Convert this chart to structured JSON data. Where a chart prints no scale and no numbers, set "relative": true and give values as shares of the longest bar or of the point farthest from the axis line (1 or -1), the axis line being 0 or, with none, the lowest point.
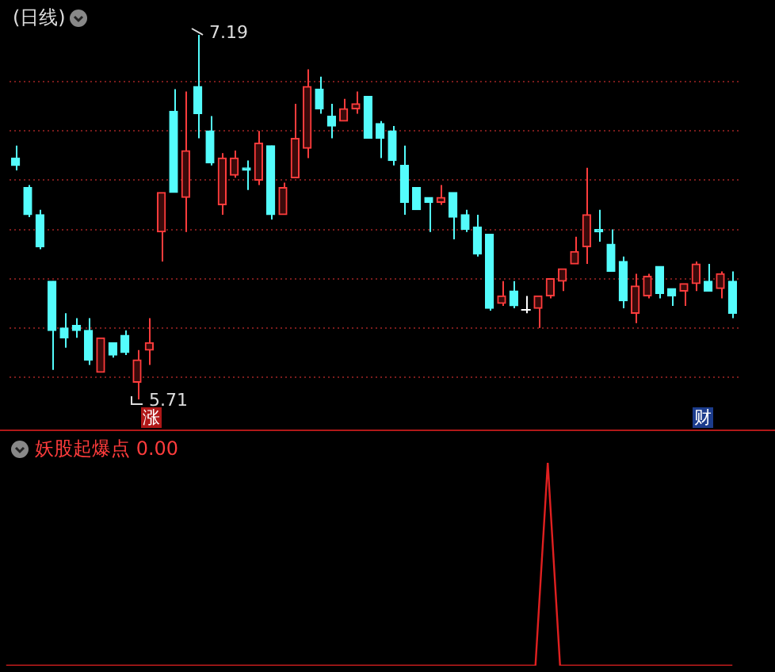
{
  "chart_data": [
    {
      "type": "candlestick",
      "title": "(日线)",
      "categories": [
        null,
        null,
        null,
        null,
        null,
        null,
        null,
        null,
        null,
        null,
        null,
        null,
        null,
        null,
        null,
        null,
        null,
        null,
        null,
        null,
        null,
        null,
        null,
        null,
        null,
        null,
        null,
        null,
        null,
        null,
        null,
        null,
        null,
        null,
        null,
        null,
        null,
        null,
        null,
        null,
        null,
        null,
        null,
        null,
        null,
        null,
        null,
        null,
        null,
        null,
        null,
        null,
        null,
        null,
        null,
        null,
        null,
        null,
        null,
        null
      ],
      "ohlc": [
        [
          6.69,
          6.74,
          6.64,
          6.66
        ],
        [
          6.57,
          6.58,
          6.45,
          6.46
        ],
        [
          6.46,
          6.48,
          6.32,
          6.33
        ],
        [
          6.19,
          6.19,
          5.83,
          5.99
        ],
        [
          6.0,
          6.06,
          5.92,
          5.96
        ],
        [
          6.01,
          6.04,
          5.96,
          5.99
        ],
        [
          5.99,
          6.04,
          5.85,
          5.87
        ],
        [
          5.82,
          5.96,
          5.82,
          5.96
        ],
        [
          5.94,
          5.94,
          5.88,
          5.89
        ],
        [
          5.97,
          5.99,
          5.89,
          5.9
        ],
        [
          5.78,
          5.91,
          5.71,
          5.87
        ],
        [
          5.91,
          6.04,
          5.85,
          5.94
        ],
        [
          6.39,
          6.55,
          6.27,
          6.55
        ],
        [
          6.88,
          6.97,
          6.55,
          6.55
        ],
        [
          6.53,
          6.96,
          6.39,
          6.72
        ],
        [
          6.98,
          7.19,
          6.77,
          6.87
        ],
        [
          6.8,
          6.86,
          6.66,
          6.67
        ],
        [
          6.5,
          6.71,
          6.46,
          6.69
        ],
        [
          6.62,
          6.72,
          6.61,
          6.69
        ],
        [
          6.65,
          6.68,
          6.56,
          6.64
        ],
        [
          6.6,
          6.8,
          6.58,
          6.75
        ],
        [
          6.74,
          6.74,
          6.44,
          6.46
        ],
        [
          6.46,
          6.59,
          6.46,
          6.57
        ],
        [
          6.61,
          6.91,
          6.61,
          6.77
        ],
        [
          6.73,
          7.05,
          6.69,
          6.98
        ],
        [
          6.97,
          7.02,
          6.87,
          6.89
        ],
        [
          6.86,
          6.91,
          6.77,
          6.82
        ],
        [
          6.84,
          6.93,
          6.84,
          6.89
        ],
        [
          6.89,
          6.96,
          6.87,
          6.91
        ],
        [
          6.94,
          6.94,
          6.77,
          6.77
        ],
        [
          6.83,
          6.84,
          6.69,
          6.77
        ],
        [
          6.8,
          6.82,
          6.66,
          6.68
        ],
        [
          6.66,
          6.74,
          6.46,
          6.51
        ],
        [
          6.57,
          6.57,
          6.48,
          6.48
        ],
        [
          6.53,
          6.53,
          6.39,
          6.51
        ],
        [
          6.51,
          6.58,
          6.5,
          6.53
        ],
        [
          6.55,
          6.55,
          6.36,
          6.45
        ],
        [
          6.46,
          6.48,
          6.39,
          6.4
        ],
        [
          6.41,
          6.46,
          6.29,
          6.3
        ],
        [
          6.38,
          6.38,
          6.07,
          6.08
        ],
        [
          6.1,
          6.19,
          6.09,
          6.13
        ],
        [
          6.15,
          6.19,
          6.08,
          6.09
        ],
        [
          6.08,
          6.13,
          6.06,
          6.08
        ],
        [
          6.08,
          6.13,
          6.0,
          6.13
        ],
        [
          6.13,
          6.2,
          6.12,
          6.2
        ],
        [
          6.19,
          6.24,
          6.15,
          6.24
        ],
        [
          6.26,
          6.37,
          6.26,
          6.31
        ],
        [
          6.33,
          6.65,
          6.26,
          6.46
        ],
        [
          6.4,
          6.48,
          6.35,
          6.39
        ],
        [
          6.34,
          6.4,
          6.23,
          6.23
        ],
        [
          6.27,
          6.29,
          6.08,
          6.11
        ],
        [
          6.06,
          6.22,
          6.02,
          6.17
        ],
        [
          6.13,
          6.22,
          6.12,
          6.21
        ],
        [
          6.25,
          6.25,
          6.12,
          6.14
        ],
        [
          6.16,
          6.16,
          6.09,
          6.13
        ],
        [
          6.15,
          6.18,
          6.09,
          6.18
        ],
        [
          6.18,
          6.27,
          6.15,
          6.26
        ],
        [
          6.19,
          6.26,
          6.15,
          6.15
        ],
        [
          6.16,
          6.23,
          6.12,
          6.22
        ],
        [
          6.19,
          6.23,
          6.04,
          6.06
        ]
      ],
      "colors": [
        "#54fcfc",
        "#54fcfc",
        "#54fcfc",
        "#54fcfc",
        "#54fcfc",
        "#54fcfc",
        "#54fcfc",
        "#ff3c3c",
        "#54fcfc",
        "#54fcfc",
        "#ff3c3c",
        "#ff3c3c",
        "#ff3c3c",
        "#54fcfc",
        "#ff3c3c",
        "#54fcfc",
        "#54fcfc",
        "#ff3c3c",
        "#ff3c3c",
        "#54fcfc",
        "#ff3c3c",
        "#54fcfc",
        "#ff3c3c",
        "#ff3c3c",
        "#ff3c3c",
        "#54fcfc",
        "#54fcfc",
        "#ff3c3c",
        "#ff3c3c",
        "#54fcfc",
        "#54fcfc",
        "#54fcfc",
        "#54fcfc",
        "#54fcfc",
        "#54fcfc",
        "#ff3c3c",
        "#54fcfc",
        "#54fcfc",
        "#54fcfc",
        "#54fcfc",
        "#ff3c3c",
        "#54fcfc",
        "#ffffff",
        "#ff3c3c",
        "#ff3c3c",
        "#ff3c3c",
        "#ff3c3c",
        "#ff3c3c",
        "#54fcfc",
        "#54fcfc",
        "#54fcfc",
        "#ff3c3c",
        "#ff3c3c",
        "#54fcfc",
        "#54fcfc",
        "#ff3c3c",
        "#ff3c3c",
        "#54fcfc",
        "#ff3c3c",
        "#54fcfc"
      ],
      "yticks": [
        {
          "value": 5.8,
          "label": null
        },
        {
          "value": 6.0,
          "label": null
        },
        {
          "value": 6.2,
          "label": null
        },
        {
          "value": 6.4,
          "label": null
        },
        {
          "value": 6.6,
          "label": null
        },
        {
          "value": 6.8,
          "label": null
        },
        {
          "value": 7.0,
          "label": null
        }
      ],
      "grid": "y",
      "annotations": [
        "7.19",
        "5.71",
        "涨",
        "财"
      ]
    },
    {
      "type": "line",
      "title": "妖股起爆点 0.00",
      "categories": [
        null,
        null,
        null,
        null,
        null,
        null,
        null,
        null,
        null,
        null,
        null,
        null,
        null,
        null,
        null,
        null,
        null,
        null,
        null,
        null,
        null,
        null,
        null,
        null,
        null,
        null,
        null,
        null,
        null,
        null,
        null,
        null,
        null,
        null,
        null,
        null,
        null,
        null,
        null,
        null,
        null,
        null,
        null,
        null,
        null,
        null,
        null,
        null,
        null,
        null,
        null,
        null,
        null,
        null,
        null,
        null,
        null,
        null,
        null,
        null
      ],
      "relative": true,
      "series": [
        {
          "color": "#e02020",
          "values": [
            0,
            0,
            0,
            0,
            0,
            0,
            0,
            0,
            0,
            0,
            0,
            0,
            0,
            0,
            0,
            0,
            0,
            0,
            0,
            0,
            0,
            0,
            0,
            0,
            0,
            0,
            0,
            0,
            0,
            0,
            0,
            0,
            0,
            0,
            0,
            0,
            0,
            0,
            0,
            0,
            0,
            0,
            0,
            0,
            1,
            0,
            0,
            0,
            0,
            0,
            0,
            0,
            0,
            0,
            0,
            0,
            0,
            0,
            0,
            0
          ]
        }
      ]
    }
  ]
}
